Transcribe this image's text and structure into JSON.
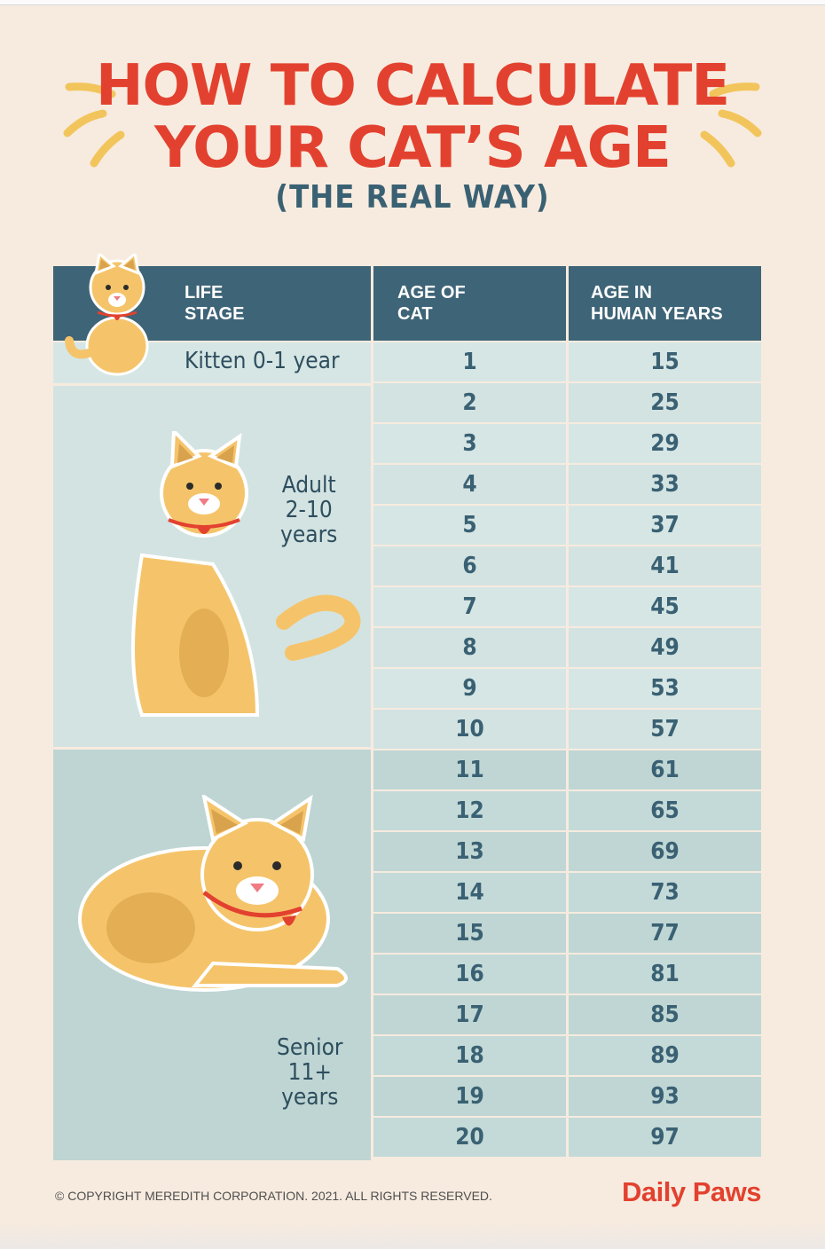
{
  "title_line1": "HOW TO CALCULATE",
  "title_line2": "YOUR CAT’S AGE",
  "subtitle": "(THE REAL WAY)",
  "headers": {
    "life_stage": "LIFE\nSTAGE",
    "age_of_cat": "AGE OF\nCAT",
    "human_years": "AGE IN\nHUMAN YEARS"
  },
  "stages": {
    "kitten": "Kitten 0-1 year",
    "adult": "Adult\n2-10\nyears",
    "senior": "Senior\n11+\nyears"
  },
  "rows": [
    {
      "cat": "1",
      "human": "15"
    },
    {
      "cat": "2",
      "human": "25"
    },
    {
      "cat": "3",
      "human": "29"
    },
    {
      "cat": "4",
      "human": "33"
    },
    {
      "cat": "5",
      "human": "37"
    },
    {
      "cat": "6",
      "human": "41"
    },
    {
      "cat": "7",
      "human": "45"
    },
    {
      "cat": "8",
      "human": "49"
    },
    {
      "cat": "9",
      "human": "53"
    },
    {
      "cat": "10",
      "human": "57"
    },
    {
      "cat": "11",
      "human": "61"
    },
    {
      "cat": "12",
      "human": "65"
    },
    {
      "cat": "13",
      "human": "69"
    },
    {
      "cat": "14",
      "human": "73"
    },
    {
      "cat": "15",
      "human": "77"
    },
    {
      "cat": "16",
      "human": "81"
    },
    {
      "cat": "17",
      "human": "85"
    },
    {
      "cat": "18",
      "human": "89"
    },
    {
      "cat": "19",
      "human": "93"
    },
    {
      "cat": "20",
      "human": "97"
    }
  ],
  "footer": "© COPYRIGHT MEREDITH CORPORATION. 2021. ALL RIGHTS RESERVED.",
  "brand": "Daily Paws",
  "colors": {
    "background": "#f7ebdf",
    "title": "#e3412f",
    "header": "#3e6477",
    "cell_light": "#d6e6e5",
    "cell_dark": "#bfd6d4",
    "cat": "#f5c46a"
  }
}
